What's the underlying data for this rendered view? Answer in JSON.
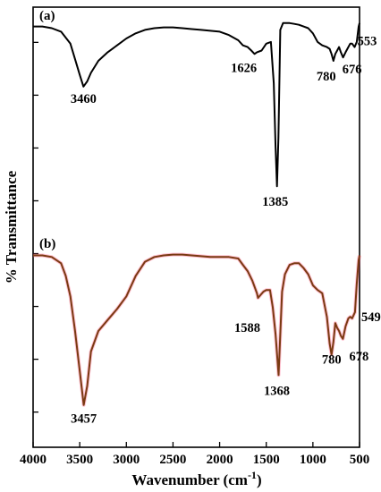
{
  "chart_data": {
    "type": "line",
    "xlabel": "Wavenumber (cm",
    "xlabel_sup": "-1",
    "xlabel_end": ")",
    "ylabel": "% Transmittance",
    "xlim": [
      4000,
      500
    ],
    "x_reversed": true,
    "x_ticks": [
      4000,
      3500,
      3000,
      2500,
      2000,
      1500,
      1000,
      500
    ],
    "x_tick_labels": [
      "4000",
      "3500",
      "3000",
      "2500",
      "2000",
      "1500",
      "1000",
      "500"
    ],
    "ylim": [
      0,
      100
    ],
    "y_tick_values": [
      8,
      20,
      32,
      44,
      56,
      68,
      80,
      92
    ],
    "y_tick_labels_shown": false,
    "grid": false,
    "panels": [
      {
        "label": "(a)",
        "color": "#000000",
        "ylim": [
          0,
          100
        ],
        "x": [
          4000,
          3900,
          3800,
          3700,
          3600,
          3550,
          3500,
          3460,
          3420,
          3380,
          3300,
          3200,
          3100,
          3000,
          2900,
          2800,
          2700,
          2600,
          2500,
          2400,
          2300,
          2200,
          2100,
          2000,
          1900,
          1800,
          1750,
          1700,
          1660,
          1626,
          1600,
          1550,
          1500,
          1450,
          1420,
          1400,
          1385,
          1370,
          1350,
          1320,
          1300,
          1250,
          1200,
          1150,
          1100,
          1050,
          1000,
          950,
          900,
          850,
          820,
          800,
          780,
          760,
          740,
          720,
          700,
          676,
          650,
          620,
          600,
          580,
          553,
          530,
          510,
          500
        ],
        "y": [
          95,
          95,
          94,
          92,
          85,
          76,
          67,
          60,
          63,
          68,
          75,
          80,
          84,
          88,
          91,
          93,
          94,
          94.5,
          94.5,
          94,
          93.5,
          93,
          92.5,
          92,
          90,
          87,
          84,
          83,
          81,
          79,
          80,
          81,
          85,
          86,
          62,
          25,
          2,
          30,
          93,
          97,
          97,
          97,
          96.5,
          96,
          95,
          94,
          91,
          86,
          84,
          83,
          82,
          79,
          75,
          79,
          81,
          83,
          80,
          77,
          80,
          83,
          85,
          85,
          83,
          86,
          95,
          97
        ],
        "annotations": [
          {
            "x": 3460,
            "text": "3460"
          },
          {
            "x": 1626,
            "text": "1626"
          },
          {
            "x": 1385,
            "text": "1385"
          },
          {
            "x": 780,
            "text": "780"
          },
          {
            "x": 676,
            "text": "676"
          },
          {
            "x": 553,
            "text": "553"
          }
        ]
      },
      {
        "label": "(b)",
        "color": "#7a3a12",
        "glow": "#ff4f7a",
        "ylim": [
          0,
          100
        ],
        "x": [
          4000,
          3900,
          3800,
          3700,
          3650,
          3600,
          3550,
          3500,
          3457,
          3420,
          3380,
          3300,
          3200,
          3100,
          3000,
          2900,
          2800,
          2700,
          2600,
          2500,
          2400,
          2300,
          2200,
          2100,
          2000,
          1900,
          1800,
          1750,
          1700,
          1650,
          1600,
          1588,
          1560,
          1530,
          1500,
          1460,
          1430,
          1400,
          1368,
          1350,
          1330,
          1300,
          1250,
          1200,
          1150,
          1100,
          1050,
          1000,
          950,
          900,
          850,
          820,
          800,
          780,
          760,
          740,
          720,
          700,
          678,
          650,
          620,
          600,
          580,
          549,
          530,
          510,
          500
        ],
        "y": [
          98,
          98,
          97,
          93,
          85,
          72,
          50,
          25,
          3,
          15,
          37,
          50,
          57,
          64,
          72,
          85,
          94,
          97,
          98,
          98.5,
          98.5,
          98,
          97.5,
          97,
          97,
          97,
          96,
          92,
          88,
          82,
          74,
          71,
          73,
          75,
          76,
          76,
          65,
          48,
          22,
          48,
          75,
          86,
          92,
          93,
          93,
          90,
          86,
          79,
          76,
          74,
          59,
          42,
          35,
          43,
          55,
          52,
          50,
          47,
          45,
          53,
          58,
          59,
          58,
          62,
          80,
          95,
          98
        ],
        "annotations": [
          {
            "x": 3457,
            "text": "3457"
          },
          {
            "x": 1588,
            "text": "1588"
          },
          {
            "x": 1368,
            "text": "1368"
          },
          {
            "x": 780,
            "text": "780"
          },
          {
            "x": 678,
            "text": "678"
          },
          {
            "x": 549,
            "text": "549"
          }
        ]
      }
    ]
  }
}
